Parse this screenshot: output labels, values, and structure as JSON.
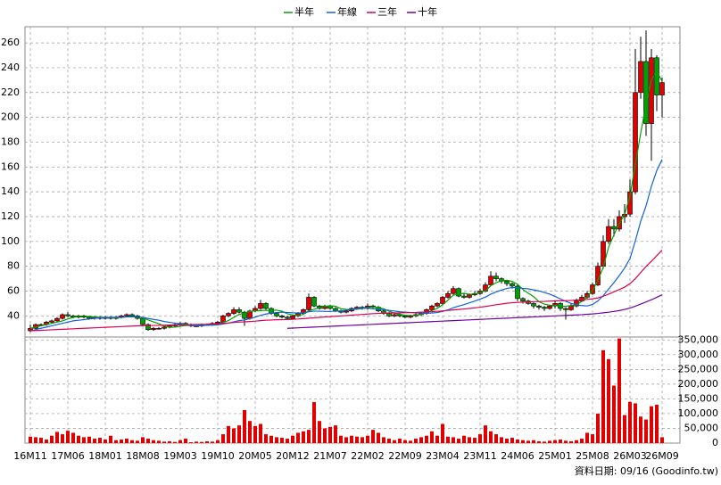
{
  "chart_data": {
    "type": "candlestick",
    "source": "資料日期: 09/16 (Goodinfo.tw)",
    "categories": [
      "16M11",
      null,
      null,
      null,
      null,
      null,
      null,
      "17M06",
      null,
      null,
      null,
      null,
      null,
      null,
      "18M01",
      null,
      null,
      null,
      null,
      null,
      null,
      "18M08",
      null,
      null,
      null,
      null,
      null,
      null,
      "19M03",
      null,
      null,
      null,
      null,
      null,
      null,
      "19M10",
      null,
      null,
      null,
      null,
      null,
      null,
      "20M05",
      null,
      null,
      null,
      null,
      null,
      null,
      "20M12",
      null,
      null,
      null,
      null,
      null,
      null,
      "21M07",
      null,
      null,
      null,
      null,
      null,
      null,
      "22M02",
      null,
      null,
      null,
      null,
      null,
      null,
      "22M09",
      null,
      null,
      null,
      null,
      null,
      null,
      "23M04",
      null,
      null,
      null,
      null,
      null,
      null,
      "23M11",
      null,
      null,
      null,
      null,
      null,
      null,
      "24M06",
      null,
      null,
      null,
      null,
      null,
      null,
      "25M01",
      null,
      null,
      null,
      null,
      null,
      null,
      "25M08",
      null,
      null,
      null,
      null,
      null,
      null,
      "26M03",
      null,
      null,
      null,
      null,
      null,
      "26M09"
    ],
    "ylim": [
      23,
      273
    ],
    "yticks": [
      40,
      60,
      80,
      100,
      120,
      140,
      160,
      180,
      200,
      220,
      240,
      260
    ],
    "grid": true,
    "up_color": "#e00000",
    "down_color": "#00a000",
    "candles": [
      [
        28,
        33,
        27,
        30
      ],
      [
        30,
        34,
        29,
        33
      ],
      [
        33,
        34,
        32,
        33
      ],
      [
        33,
        36,
        32,
        35
      ],
      [
        35,
        37,
        34,
        36
      ],
      [
        36,
        39,
        35,
        38
      ],
      [
        38,
        42,
        37,
        41
      ],
      [
        41,
        43,
        39,
        40
      ],
      [
        40,
        41,
        38,
        39
      ],
      [
        39,
        41,
        38,
        40
      ],
      [
        40,
        41,
        38,
        39
      ],
      [
        39,
        40,
        37,
        38
      ],
      [
        38,
        40,
        37,
        39
      ],
      [
        39,
        40,
        37,
        38
      ],
      [
        38,
        40,
        37,
        39
      ],
      [
        39,
        40,
        37,
        38
      ],
      [
        38,
        40,
        37,
        39
      ],
      [
        39,
        41,
        38,
        40
      ],
      [
        40,
        42,
        39,
        41
      ],
      [
        41,
        42,
        39,
        40
      ],
      [
        40,
        41,
        37,
        38
      ],
      [
        38,
        39,
        32,
        33
      ],
      [
        33,
        34,
        28,
        29
      ],
      [
        29,
        31,
        28,
        30
      ],
      [
        30,
        31,
        29,
        30
      ],
      [
        30,
        32,
        29,
        31
      ],
      [
        31,
        33,
        30,
        32
      ],
      [
        32,
        34,
        31,
        33
      ],
      [
        33,
        35,
        32,
        34
      ],
      [
        34,
        35,
        32,
        33
      ],
      [
        33,
        34,
        31,
        32
      ],
      [
        32,
        33,
        31,
        32
      ],
      [
        32,
        34,
        31,
        33
      ],
      [
        33,
        34,
        32,
        33
      ],
      [
        33,
        35,
        32,
        34
      ],
      [
        34,
        36,
        33,
        35
      ],
      [
        35,
        41,
        34,
        40
      ],
      [
        40,
        43,
        39,
        42
      ],
      [
        42,
        47,
        41,
        45
      ],
      [
        45,
        47,
        42,
        43
      ],
      [
        43,
        44,
        32,
        38
      ],
      [
        38,
        45,
        37,
        44
      ],
      [
        44,
        48,
        43,
        46
      ],
      [
        46,
        53,
        45,
        50
      ],
      [
        50,
        51,
        45,
        46
      ],
      [
        46,
        47,
        41,
        42
      ],
      [
        42,
        43,
        39,
        40
      ],
      [
        40,
        41,
        38,
        39
      ],
      [
        39,
        40,
        37,
        38
      ],
      [
        38,
        41,
        37,
        40
      ],
      [
        40,
        43,
        39,
        42
      ],
      [
        42,
        46,
        41,
        45
      ],
      [
        45,
        58,
        44,
        55
      ],
      [
        55,
        56,
        47,
        48
      ],
      [
        48,
        49,
        45,
        46
      ],
      [
        46,
        49,
        45,
        48
      ],
      [
        48,
        49,
        45,
        46
      ],
      [
        46,
        47,
        43,
        44
      ],
      [
        44,
        45,
        42,
        43
      ],
      [
        43,
        45,
        42,
        44
      ],
      [
        44,
        47,
        43,
        46
      ],
      [
        46,
        48,
        45,
        47
      ],
      [
        47,
        48,
        45,
        46
      ],
      [
        46,
        50,
        45,
        48
      ],
      [
        48,
        49,
        46,
        47
      ],
      [
        47,
        48,
        43,
        44
      ],
      [
        44,
        45,
        41,
        42
      ],
      [
        42,
        43,
        39,
        40
      ],
      [
        40,
        42,
        39,
        41
      ],
      [
        41,
        42,
        39,
        40
      ],
      [
        40,
        41,
        38,
        39
      ],
      [
        39,
        41,
        38,
        40
      ],
      [
        40,
        42,
        39,
        41
      ],
      [
        41,
        43,
        40,
        42
      ],
      [
        42,
        46,
        41,
        45
      ],
      [
        45,
        49,
        44,
        48
      ],
      [
        48,
        51,
        47,
        50
      ],
      [
        50,
        56,
        49,
        55
      ],
      [
        55,
        60,
        54,
        58
      ],
      [
        58,
        64,
        57,
        62
      ],
      [
        62,
        63,
        55,
        56
      ],
      [
        56,
        58,
        54,
        55
      ],
      [
        55,
        58,
        54,
        57
      ],
      [
        57,
        60,
        56,
        58
      ],
      [
        58,
        62,
        57,
        60
      ],
      [
        60,
        67,
        59,
        65
      ],
      [
        65,
        76,
        64,
        72
      ],
      [
        72,
        75,
        68,
        70
      ],
      [
        70,
        71,
        66,
        68
      ],
      [
        68,
        69,
        64,
        66
      ],
      [
        66,
        67,
        62,
        64
      ],
      [
        64,
        65,
        52,
        54
      ],
      [
        54,
        55,
        50,
        52
      ],
      [
        52,
        53,
        49,
        50
      ],
      [
        50,
        51,
        46,
        48
      ],
      [
        48,
        49,
        45,
        47
      ],
      [
        47,
        48,
        44,
        46
      ],
      [
        46,
        49,
        45,
        48
      ],
      [
        48,
        52,
        46,
        50
      ],
      [
        50,
        51,
        44,
        46
      ],
      [
        46,
        47,
        37,
        45
      ],
      [
        45,
        50,
        44,
        48
      ],
      [
        48,
        54,
        47,
        52
      ],
      [
        52,
        57,
        51,
        55
      ],
      [
        55,
        60,
        54,
        58
      ],
      [
        58,
        67,
        57,
        65
      ],
      [
        65,
        83,
        64,
        80
      ],
      [
        80,
        105,
        78,
        100
      ],
      [
        100,
        118,
        98,
        112
      ],
      [
        112,
        118,
        104,
        110
      ],
      [
        110,
        125,
        108,
        120
      ],
      [
        120,
        130,
        115,
        122
      ],
      [
        122,
        150,
        120,
        140
      ],
      [
        140,
        255,
        138,
        220
      ],
      [
        220,
        265,
        215,
        245
      ],
      [
        245,
        270,
        185,
        195
      ],
      [
        195,
        255,
        165,
        248
      ],
      [
        248,
        250,
        205,
        218
      ],
      [
        218,
        232,
        200,
        228
      ]
    ],
    "series": [
      {
        "name": "半年",
        "color": "#00a000",
        "values": [
          30,
          31,
          32,
          33,
          34,
          35,
          36,
          37.5,
          38.8,
          39.8,
          39.5,
          39.5,
          39.2,
          38.8,
          38.8,
          38.5,
          38.5,
          38.8,
          39.2,
          39.5,
          39.5,
          38.5,
          36.8,
          35.2,
          33.7,
          31.8,
          30.8,
          31,
          31.7,
          32.2,
          32.5,
          32.7,
          32.8,
          32.8,
          32.8,
          33.2,
          34.8,
          36.2,
          38.8,
          41.2,
          42.3,
          43.7,
          44,
          44.3,
          44.5,
          44.3,
          44.7,
          43.8,
          41.7,
          40.8,
          40.2,
          41.3,
          44.2,
          45.3,
          46.7,
          47.7,
          48.2,
          47.8,
          45.8,
          45.3,
          45.2,
          45.3,
          46,
          46.7,
          47.2,
          46.7,
          45.7,
          43.8,
          42.3,
          41.3,
          40.5,
          40.3,
          40.3,
          41.3,
          42.5,
          44.3,
          46,
          49,
          52.7,
          56.7,
          57.3,
          58.3,
          57.3,
          57.7,
          59,
          60.2,
          64.3,
          66.8,
          68.3,
          68.8,
          67.8,
          65.5,
          61.3,
          58.3,
          55.5,
          51.5,
          49.5,
          48.5,
          48.5,
          47.5,
          47.8,
          48.3,
          48.8,
          51.8,
          55.3,
          60.5,
          68.5,
          79.2,
          95.3,
          105.3,
          114.5,
          121.7,
          136.5,
          162.3,
          187.3,
          210.2,
          230.2,
          237.3,
          229
        ]
      },
      {
        "name": "年線",
        "color": "#1060e0",
        "values": [
          28,
          29,
          30,
          31,
          32,
          33,
          34,
          35,
          36,
          36.5,
          37,
          37.5,
          38,
          38.5,
          38.7,
          38.8,
          38.9,
          39,
          39.2,
          39.3,
          39.2,
          38.8,
          38,
          37.2,
          36.5,
          35.5,
          34.8,
          34.2,
          33.6,
          33,
          32.4,
          32,
          32.2,
          32.4,
          32.6,
          32.8,
          33.5,
          34.2,
          35.2,
          36.2,
          36.7,
          37.8,
          39,
          40.5,
          41.5,
          42.2,
          42.7,
          43,
          42.8,
          42.5,
          42.3,
          42.5,
          43.4,
          43.8,
          43.8,
          43.6,
          43.6,
          43.8,
          44.1,
          44.5,
          45.1,
          45.8,
          46.2,
          46.3,
          45.7,
          45.4,
          45.1,
          44.5,
          43.9,
          43.4,
          43,
          42.7,
          42.5,
          42.3,
          42.2,
          42.3,
          42.7,
          43.6,
          44.9,
          46.6,
          47.9,
          49.1,
          50.5,
          52,
          53.5,
          55.2,
          57.5,
          59.3,
          60.8,
          62.1,
          62.9,
          62.5,
          62.2,
          61.8,
          61,
          60.1,
          58.9,
          57.5,
          55.7,
          53.7,
          51.8,
          50.1,
          49.1,
          48.3,
          48,
          49.3,
          52,
          56.3,
          61.6,
          66.8,
          72.5,
          78.6,
          86.2,
          100.5,
          116.2,
          128.6,
          144.5,
          157.1,
          166
        ]
      },
      {
        "name": "三年",
        "color": "#e00050",
        "values": [
          28,
          28.2,
          28.4,
          28.6,
          28.8,
          29,
          29.2,
          29.4,
          29.6,
          29.8,
          30,
          30.2,
          30.4,
          30.6,
          30.8,
          31,
          31.2,
          31.4,
          31.6,
          31.8,
          32,
          32.1,
          32.2,
          32.3,
          32.4,
          32.5,
          32.6,
          32.7,
          32.8,
          32.9,
          33,
          33.1,
          33.2,
          33.3,
          33.5,
          33.7,
          34,
          34.3,
          34.7,
          35,
          35.2,
          35.5,
          35.8,
          36.2,
          36.5,
          36.7,
          36.9,
          37,
          37.1,
          37.3,
          37.5,
          37.8,
          38.2,
          38.5,
          38.8,
          39.1,
          39.4,
          39.7,
          40,
          40.3,
          40.6,
          40.9,
          41.2,
          41.5,
          41.8,
          42,
          42.2,
          42.3,
          42.4,
          42.5,
          42.6,
          42.7,
          42.8,
          43,
          43.2,
          43.4,
          43.7,
          44,
          44.4,
          44.8,
          45.2,
          45.6,
          46,
          46.5,
          47,
          47.6,
          48.3,
          49,
          49.6,
          50.2,
          50.6,
          50.9,
          51.1,
          51.3,
          51.5,
          51.6,
          51.7,
          51.9,
          52.1,
          52.2,
          52.3,
          52.5,
          52.7,
          53,
          53.3,
          53.7,
          54.5,
          55.8,
          57.5,
          59.4,
          61.2,
          63.2,
          66,
          70,
          75,
          79.8,
          84,
          88.5,
          93
        ]
      },
      {
        "name": "十年",
        "color": "#7000a0",
        "values": [
          null,
          null,
          null,
          null,
          null,
          null,
          null,
          null,
          null,
          null,
          null,
          null,
          null,
          null,
          null,
          null,
          null,
          null,
          null,
          null,
          null,
          null,
          null,
          null,
          null,
          null,
          null,
          null,
          null,
          null,
          null,
          null,
          null,
          null,
          null,
          null,
          null,
          null,
          null,
          null,
          null,
          null,
          null,
          null,
          null,
          null,
          null,
          null,
          30,
          30.2,
          30.4,
          30.6,
          30.8,
          31,
          31.2,
          31.4,
          31.6,
          31.8,
          32,
          32.2,
          32.4,
          32.6,
          32.8,
          33,
          33.2,
          33.4,
          33.6,
          33.8,
          34,
          34.2,
          34.4,
          34.6,
          34.8,
          35,
          35.2,
          35.4,
          35.6,
          35.8,
          36,
          36.2,
          36.4,
          36.6,
          36.8,
          37,
          37.2,
          37.4,
          37.6,
          37.8,
          38,
          38.2,
          38.4,
          38.6,
          38.8,
          39,
          39.2,
          39.4,
          39.6,
          39.8,
          40,
          40.2,
          40.4,
          40.6,
          40.8,
          41,
          41.3,
          41.6,
          42,
          42.5,
          43,
          43.6,
          44.3,
          45.2,
          46.3,
          47.8,
          49.5,
          51.2,
          53,
          55,
          57
        ]
      }
    ],
    "volume": {
      "color": "#e00000",
      "ylim": [
        0,
        360000
      ],
      "yticks": [
        0,
        {
          "value": 50000,
          "label": "50,000"
        },
        {
          "value": 100000,
          "label": "100,000"
        },
        {
          "value": 150000,
          "label": "150,000"
        },
        {
          "value": 200000,
          "label": "200,000"
        },
        {
          "value": 250000,
          "label": "250,000"
        },
        {
          "value": 300000,
          "label": "300,000"
        },
        {
          "value": 350000,
          "label": "350,000"
        }
      ],
      "values": [
        22000,
        20000,
        18000,
        12000,
        25000,
        38000,
        30000,
        42000,
        35000,
        25000,
        20000,
        22000,
        15000,
        18000,
        12000,
        25000,
        10000,
        12000,
        15000,
        10000,
        8000,
        20000,
        15000,
        10000,
        8000,
        5000,
        6000,
        4000,
        10000,
        15000,
        3000,
        5000,
        4000,
        6000,
        5000,
        10000,
        30000,
        58000,
        50000,
        60000,
        112000,
        75000,
        58000,
        65000,
        30000,
        25000,
        20000,
        18000,
        15000,
        25000,
        35000,
        40000,
        45000,
        139000,
        75000,
        50000,
        55000,
        60000,
        25000,
        20000,
        25000,
        22000,
        20000,
        25000,
        45000,
        35000,
        20000,
        15000,
        10000,
        15000,
        10000,
        8000,
        15000,
        20000,
        25000,
        40000,
        25000,
        65000,
        22000,
        20000,
        15000,
        25000,
        20000,
        18000,
        30000,
        60000,
        40000,
        30000,
        20000,
        15000,
        18000,
        12000,
        10000,
        8000,
        10000,
        6000,
        5000,
        8000,
        10000,
        12000,
        8000,
        6000,
        10000,
        15000,
        35000,
        30000,
        100000,
        315000,
        285000,
        195000,
        355000,
        95000,
        140000,
        135000,
        90000,
        80000,
        125000,
        130000,
        20000
      ]
    }
  }
}
